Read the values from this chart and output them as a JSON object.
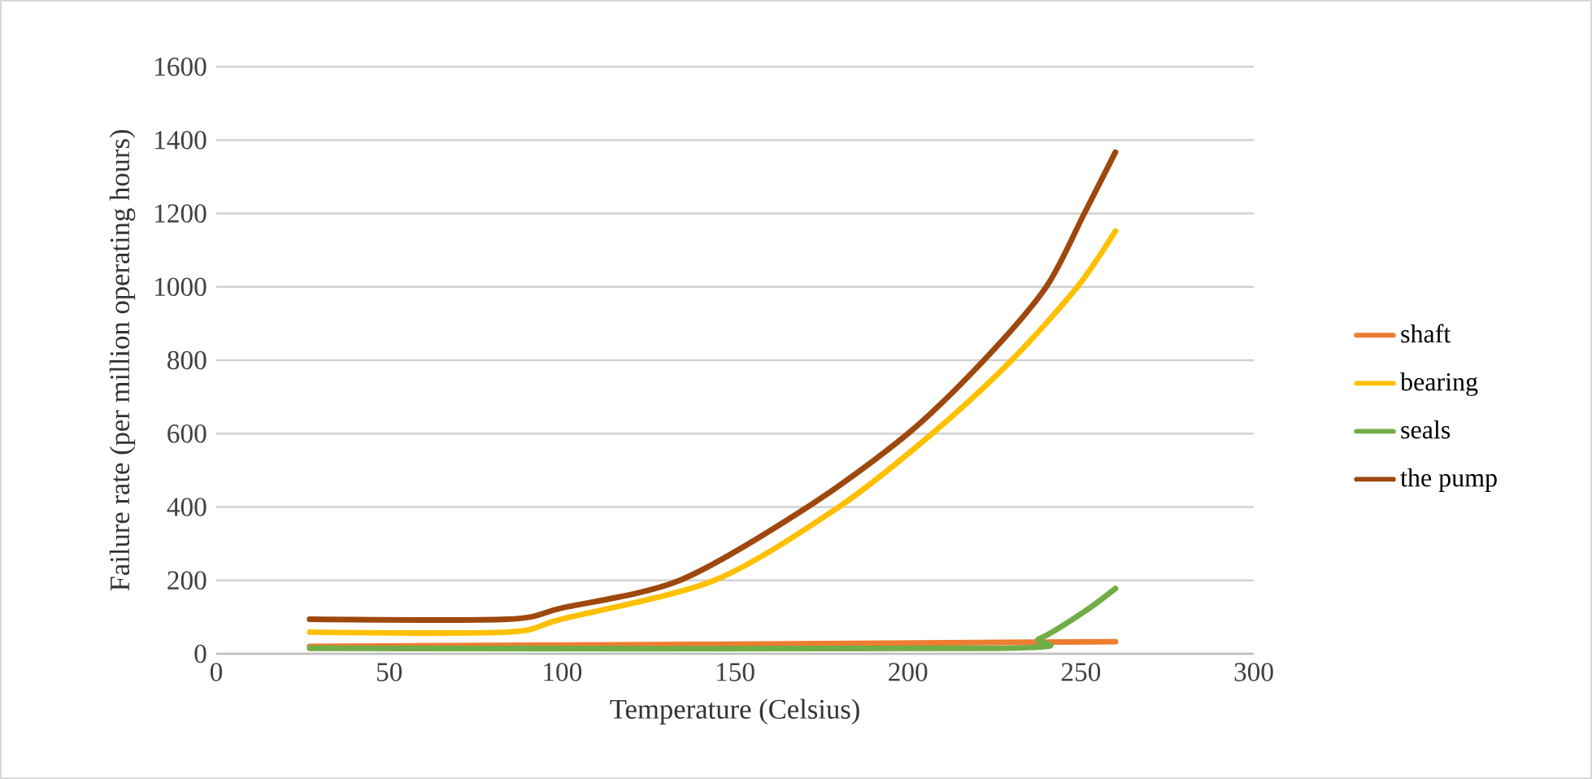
{
  "chart_data": {
    "type": "line",
    "xlabel": "Temperature (Celsius)",
    "ylabel": "Failure rate (per million operating hours)",
    "xlim": [
      0,
      300
    ],
    "xticks": [
      0,
      50,
      100,
      150,
      200,
      250,
      300
    ],
    "ylim": [
      0,
      1600
    ],
    "yticks": [
      0,
      200,
      400,
      600,
      800,
      1000,
      1200,
      1400,
      1600
    ],
    "grid": "y",
    "legend": "right",
    "marker": "none",
    "line_style": "solid",
    "series": [
      {
        "name": "shaft",
        "color": "#ed7d31",
        "x": [
          27,
          150,
          260
        ],
        "values": [
          20,
          26,
          33
        ]
      },
      {
        "name": "bearing",
        "color": "#ffc000",
        "x": [
          27,
          84,
          100,
          144,
          180,
          207,
          230,
          249,
          260
        ],
        "values": [
          59,
          59,
          95,
          200,
          400,
          600,
          800,
          1000,
          1152
        ]
      },
      {
        "name": "seals",
        "color": "#70ad47",
        "x": [
          27,
          225,
          238,
          251,
          260
        ],
        "values": [
          15,
          15,
          41,
          115,
          178
        ]
      },
      {
        "name": "the pump",
        "color": "#9e480e",
        "x": [
          27,
          84,
          100,
          134,
          171,
          200,
          222,
          240,
          251,
          260
        ],
        "values": [
          94,
          94,
          125,
          200,
          400,
          600,
          800,
          1000,
          1200,
          1367
        ]
      }
    ]
  }
}
